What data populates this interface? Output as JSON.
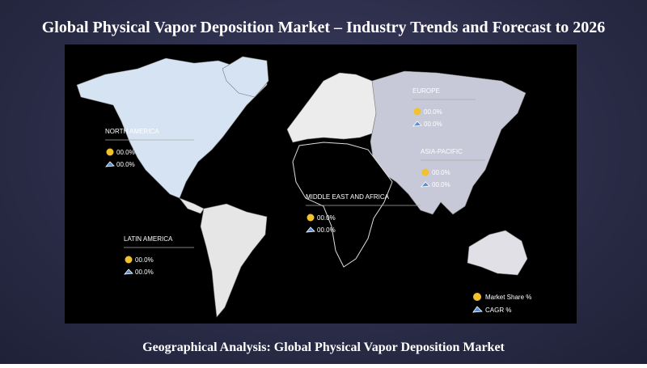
{
  "header": {
    "title": "Global Physical Vapor Deposition Market – Industry Trends and Forecast to 2026"
  },
  "regions": [
    {
      "name": "NORTH AMERICA",
      "market_share": "00.0%",
      "cagr": "00.0%"
    },
    {
      "name": "EUROPE",
      "market_share": "00.0%",
      "cagr": "00.0%"
    },
    {
      "name": "ASIA-PACIFIC",
      "market_share": "00.0%",
      "cagr": "00.0%"
    },
    {
      "name": "MIDDLE EAST AND AFRICA",
      "market_share": "00.0%",
      "cagr": "00.0%"
    },
    {
      "name": "LATIN AMERICA",
      "market_share": "00.0%",
      "cagr": "00.0%"
    }
  ],
  "legend": {
    "market_share": "Market Share %",
    "cagr": "CAGR %"
  },
  "footer": {
    "caption": "Geographical Analysis: Global Physical Vapor Deposition Market"
  }
}
